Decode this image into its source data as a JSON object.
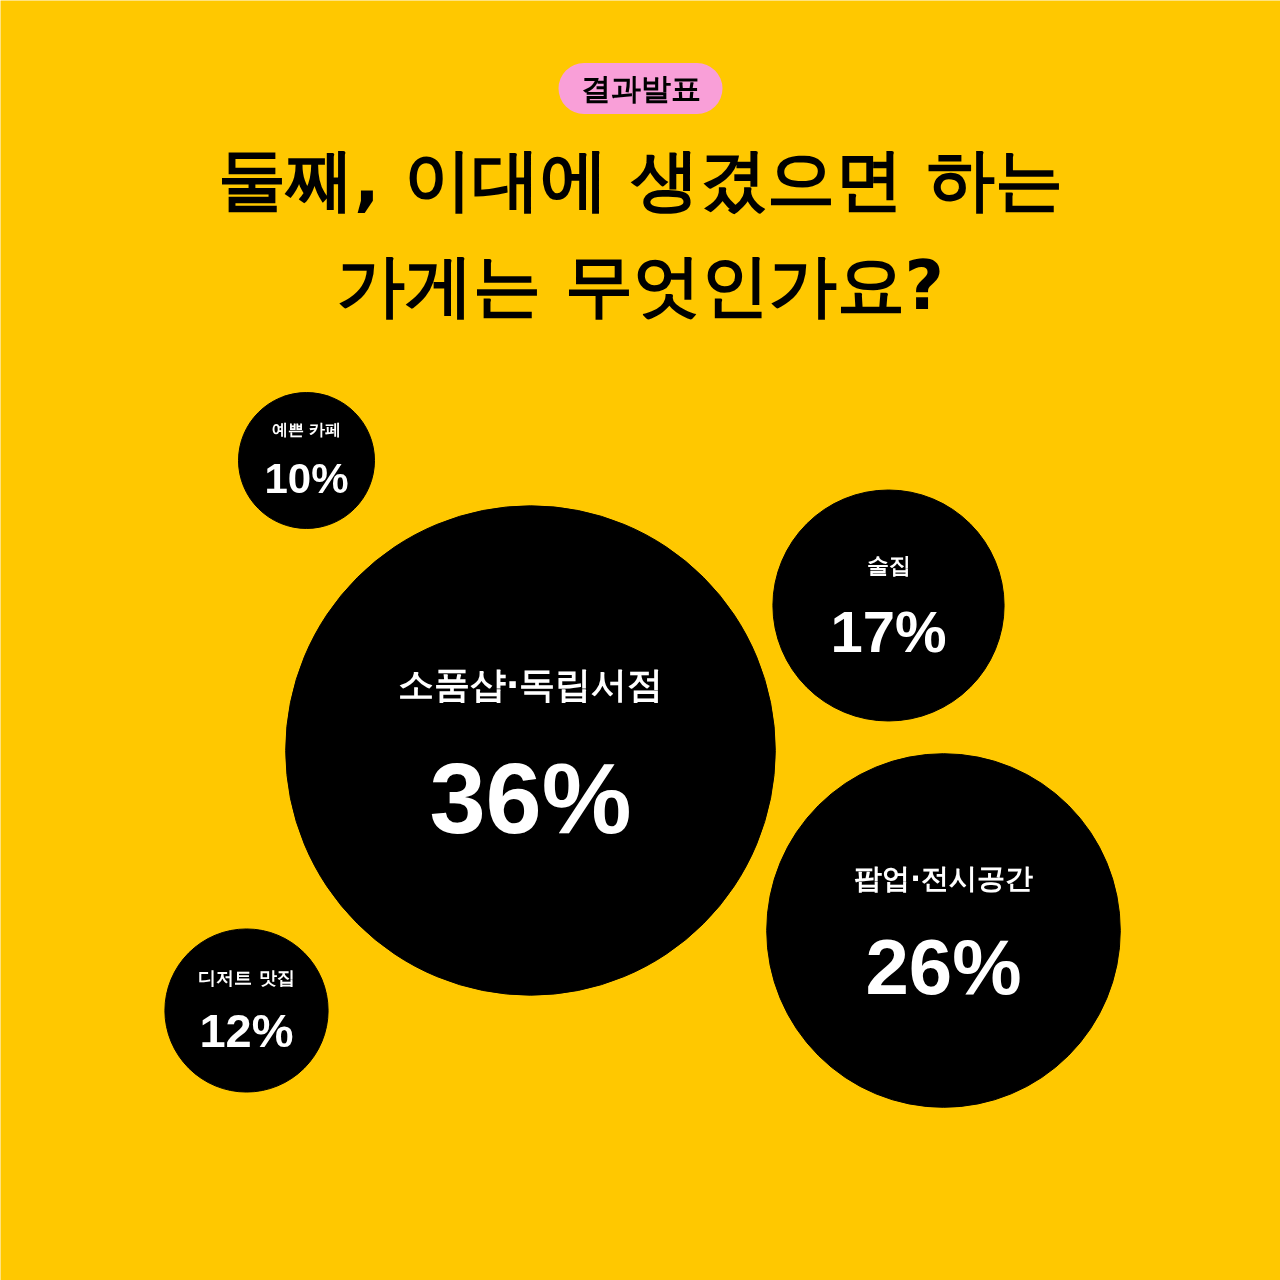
{
  "chart_data": {
    "type": "other",
    "subtitle": "결과발표",
    "title": "둘째, 이대에 생겼으면 하는\n가게는 무엇인가요?",
    "categories": [
      "예쁜 카페",
      "술집",
      "소품샵·독립서점",
      "팝업·전시공간",
      "디저트 맛집"
    ],
    "values": [
      10,
      17,
      36,
      26,
      12
    ],
    "value_labels": [
      "10%",
      "17%",
      "36%",
      "26%",
      "12%"
    ],
    "color": "#000000"
  }
}
